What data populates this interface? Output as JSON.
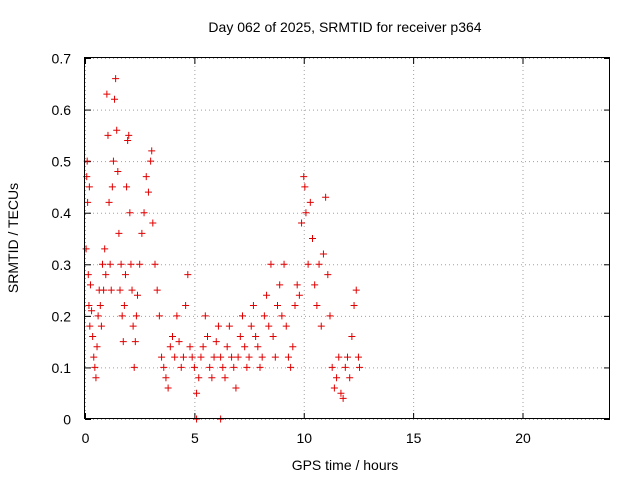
{
  "chart_data": {
    "type": "scatter",
    "title": "Day 062 of 2025, SRMTID for receiver p364",
    "xlabel": "GPS time / hours",
    "ylabel": "SRMTID / TECUs",
    "xlim": [
      0,
      24
    ],
    "ylim": [
      0,
      0.7
    ],
    "xticks": [
      0,
      5,
      10,
      15,
      20
    ],
    "xtick_labels": [
      "0",
      "5",
      "10",
      "15",
      "20"
    ],
    "yticks": [
      0,
      0.1,
      0.2,
      0.3,
      0.4,
      0.5,
      0.6,
      0.7
    ],
    "ytick_labels": [
      "0",
      "0.1",
      "0.2",
      "0.3",
      "0.4",
      "0.5",
      "0.6",
      "0.7"
    ],
    "grid": true,
    "marker": "plus",
    "color": "#e00000",
    "series": [
      {
        "name": "SRMTID",
        "points": [
          [
            0.05,
            0.33
          ],
          [
            0.08,
            0.47
          ],
          [
            0.1,
            0.5
          ],
          [
            0.12,
            0.42
          ],
          [
            0.15,
            0.28
          ],
          [
            0.18,
            0.22
          ],
          [
            0.2,
            0.45
          ],
          [
            0.22,
            0.18
          ],
          [
            0.25,
            0.26
          ],
          [
            0.3,
            0.21
          ],
          [
            0.35,
            0.16
          ],
          [
            0.4,
            0.12
          ],
          [
            0.45,
            0.1
          ],
          [
            0.5,
            0.08
          ],
          [
            0.55,
            0.14
          ],
          [
            0.6,
            0.2
          ],
          [
            0.65,
            0.25
          ],
          [
            0.7,
            0.22
          ],
          [
            0.75,
            0.18
          ],
          [
            0.8,
            0.3
          ],
          [
            0.85,
            0.25
          ],
          [
            0.9,
            0.33
          ],
          [
            0.95,
            0.28
          ],
          [
            1.0,
            0.63
          ],
          [
            1.05,
            0.55
          ],
          [
            1.1,
            0.42
          ],
          [
            1.15,
            0.3
          ],
          [
            1.2,
            0.25
          ],
          [
            1.25,
            0.45
          ],
          [
            1.3,
            0.5
          ],
          [
            1.35,
            0.62
          ],
          [
            1.4,
            0.66
          ],
          [
            1.45,
            0.56
          ],
          [
            1.5,
            0.48
          ],
          [
            1.55,
            0.36
          ],
          [
            1.6,
            0.25
          ],
          [
            1.65,
            0.3
          ],
          [
            1.7,
            0.2
          ],
          [
            1.75,
            0.15
          ],
          [
            1.8,
            0.22
          ],
          [
            1.85,
            0.28
          ],
          [
            1.9,
            0.45
          ],
          [
            1.95,
            0.54
          ],
          [
            2.0,
            0.55
          ],
          [
            2.05,
            0.4
          ],
          [
            2.1,
            0.3
          ],
          [
            2.15,
            0.25
          ],
          [
            2.2,
            0.18
          ],
          [
            2.25,
            0.1
          ],
          [
            2.3,
            0.15
          ],
          [
            2.35,
            0.2
          ],
          [
            2.4,
            0.24
          ],
          [
            2.5,
            0.3
          ],
          [
            2.6,
            0.36
          ],
          [
            2.7,
            0.4
          ],
          [
            2.8,
            0.47
          ],
          [
            2.9,
            0.44
          ],
          [
            3.0,
            0.5
          ],
          [
            3.05,
            0.52
          ],
          [
            3.1,
            0.38
          ],
          [
            3.2,
            0.3
          ],
          [
            3.3,
            0.25
          ],
          [
            3.4,
            0.2
          ],
          [
            3.5,
            0.12
          ],
          [
            3.6,
            0.1
          ],
          [
            3.7,
            0.08
          ],
          [
            3.8,
            0.06
          ],
          [
            3.9,
            0.14
          ],
          [
            4.0,
            0.16
          ],
          [
            4.1,
            0.12
          ],
          [
            4.2,
            0.2
          ],
          [
            4.3,
            0.15
          ],
          [
            4.4,
            0.1
          ],
          [
            4.5,
            0.12
          ],
          [
            4.6,
            0.22
          ],
          [
            4.7,
            0.28
          ],
          [
            4.8,
            0.14
          ],
          [
            4.9,
            0.12
          ],
          [
            5.0,
            0.1
          ],
          [
            5.1,
            0.05
          ],
          [
            5.2,
            0.08
          ],
          [
            5.3,
            0.12
          ],
          [
            5.4,
            0.14
          ],
          [
            5.5,
            0.2
          ],
          [
            5.6,
            0.16
          ],
          [
            5.7,
            0.1
          ],
          [
            5.8,
            0.08
          ],
          [
            5.9,
            0.12
          ],
          [
            6.0,
            0.15
          ],
          [
            6.1,
            0.18
          ],
          [
            6.2,
            0.12
          ],
          [
            6.3,
            0.1
          ],
          [
            6.4,
            0.08
          ],
          [
            6.5,
            0.14
          ],
          [
            6.6,
            0.18
          ],
          [
            6.7,
            0.12
          ],
          [
            6.8,
            0.1
          ],
          [
            6.9,
            0.06
          ],
          [
            7.0,
            0.12
          ],
          [
            7.1,
            0.16
          ],
          [
            7.2,
            0.2
          ],
          [
            7.3,
            0.14
          ],
          [
            7.4,
            0.1
          ],
          [
            7.5,
            0.12
          ],
          [
            7.6,
            0.18
          ],
          [
            7.7,
            0.22
          ],
          [
            7.8,
            0.16
          ],
          [
            7.9,
            0.14
          ],
          [
            8.0,
            0.1
          ],
          [
            8.1,
            0.12
          ],
          [
            8.2,
            0.2
          ],
          [
            8.3,
            0.24
          ],
          [
            8.4,
            0.18
          ],
          [
            8.5,
            0.3
          ],
          [
            8.6,
            0.16
          ],
          [
            8.7,
            0.12
          ],
          [
            8.8,
            0.22
          ],
          [
            8.9,
            0.26
          ],
          [
            9.0,
            0.2
          ],
          [
            9.1,
            0.3
          ],
          [
            9.2,
            0.18
          ],
          [
            9.3,
            0.12
          ],
          [
            9.4,
            0.1
          ],
          [
            9.5,
            0.14
          ],
          [
            9.6,
            0.22
          ],
          [
            9.7,
            0.26
          ],
          [
            9.8,
            0.24
          ],
          [
            9.9,
            0.38
          ],
          [
            10.0,
            0.47
          ],
          [
            10.05,
            0.45
          ],
          [
            10.1,
            0.4
          ],
          [
            10.2,
            0.3
          ],
          [
            10.3,
            0.42
          ],
          [
            10.4,
            0.35
          ],
          [
            10.5,
            0.26
          ],
          [
            10.6,
            0.22
          ],
          [
            10.7,
            0.3
          ],
          [
            10.8,
            0.18
          ],
          [
            10.9,
            0.32
          ],
          [
            11.0,
            0.43
          ],
          [
            11.1,
            0.28
          ],
          [
            11.2,
            0.2
          ],
          [
            11.3,
            0.1
          ],
          [
            11.4,
            0.06
          ],
          [
            11.5,
            0.08
          ],
          [
            11.6,
            0.12
          ],
          [
            11.7,
            0.05
          ],
          [
            11.8,
            0.04
          ],
          [
            11.9,
            0.1
          ],
          [
            12.0,
            0.12
          ],
          [
            12.1,
            0.08
          ],
          [
            12.2,
            0.16
          ],
          [
            12.3,
            0.22
          ],
          [
            12.4,
            0.25
          ],
          [
            12.5,
            0.12
          ],
          [
            12.55,
            0.1
          ],
          [
            5.1,
            0.0
          ],
          [
            6.2,
            0.0
          ]
        ]
      }
    ]
  }
}
